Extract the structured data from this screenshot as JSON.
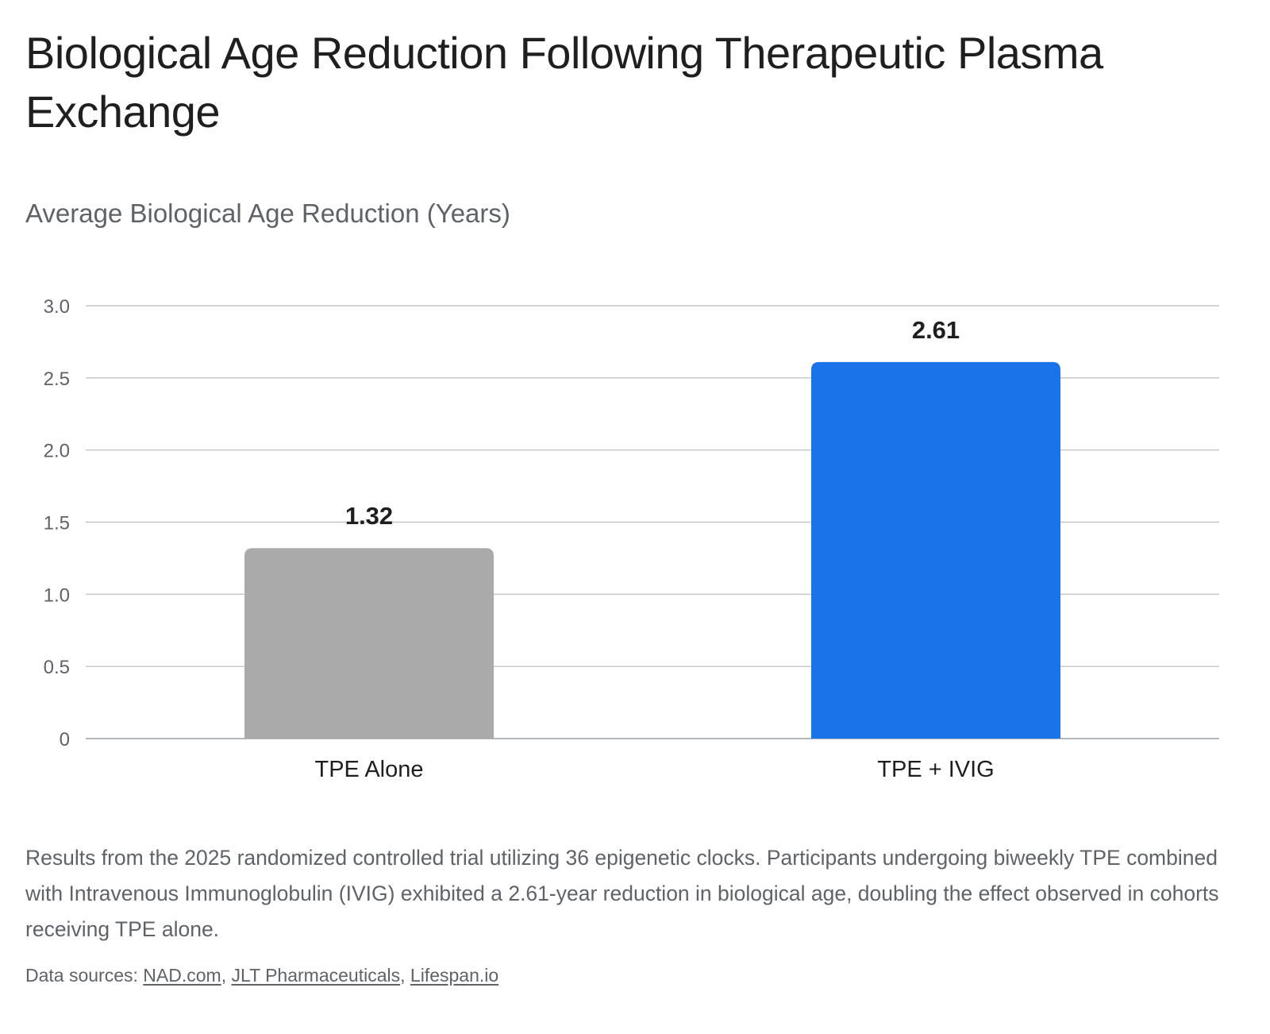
{
  "title": "Biological Age Reduction Following Therapeutic Plasma Exchange",
  "chart_data": {
    "type": "bar",
    "title": "Average Biological Age Reduction (Years)",
    "xlabel": "",
    "ylabel": "",
    "categories": [
      "TPE Alone",
      "TPE + IVIG"
    ],
    "values": [
      1.32,
      2.61
    ],
    "value_labels": [
      "1.32",
      "2.61"
    ],
    "bar_colors": [
      "#aaaaaa",
      "#1a73e8"
    ],
    "ylim": [
      0,
      3.0
    ],
    "y_ticks": [
      0,
      0.5,
      1.0,
      1.5,
      2.0,
      2.5,
      3.0
    ],
    "y_tick_labels": [
      "0",
      "0.5",
      "1.0",
      "1.5",
      "2.0",
      "2.5",
      "3.0"
    ],
    "grid": true,
    "legend": "none"
  },
  "caption": "Results from the 2025 randomized controlled trial utilizing 36 epigenetic clocks. Participants undergoing biweekly TPE combined with Intravenous Immunoglobulin (IVIG) exhibited a 2.61-year reduction in biological age, doubling the effect observed in cohorts receiving TPE alone.",
  "sources": {
    "label": "Data sources:",
    "links": [
      "NAD.com",
      "JLT Pharmaceuticals",
      "Lifespan.io"
    ]
  }
}
